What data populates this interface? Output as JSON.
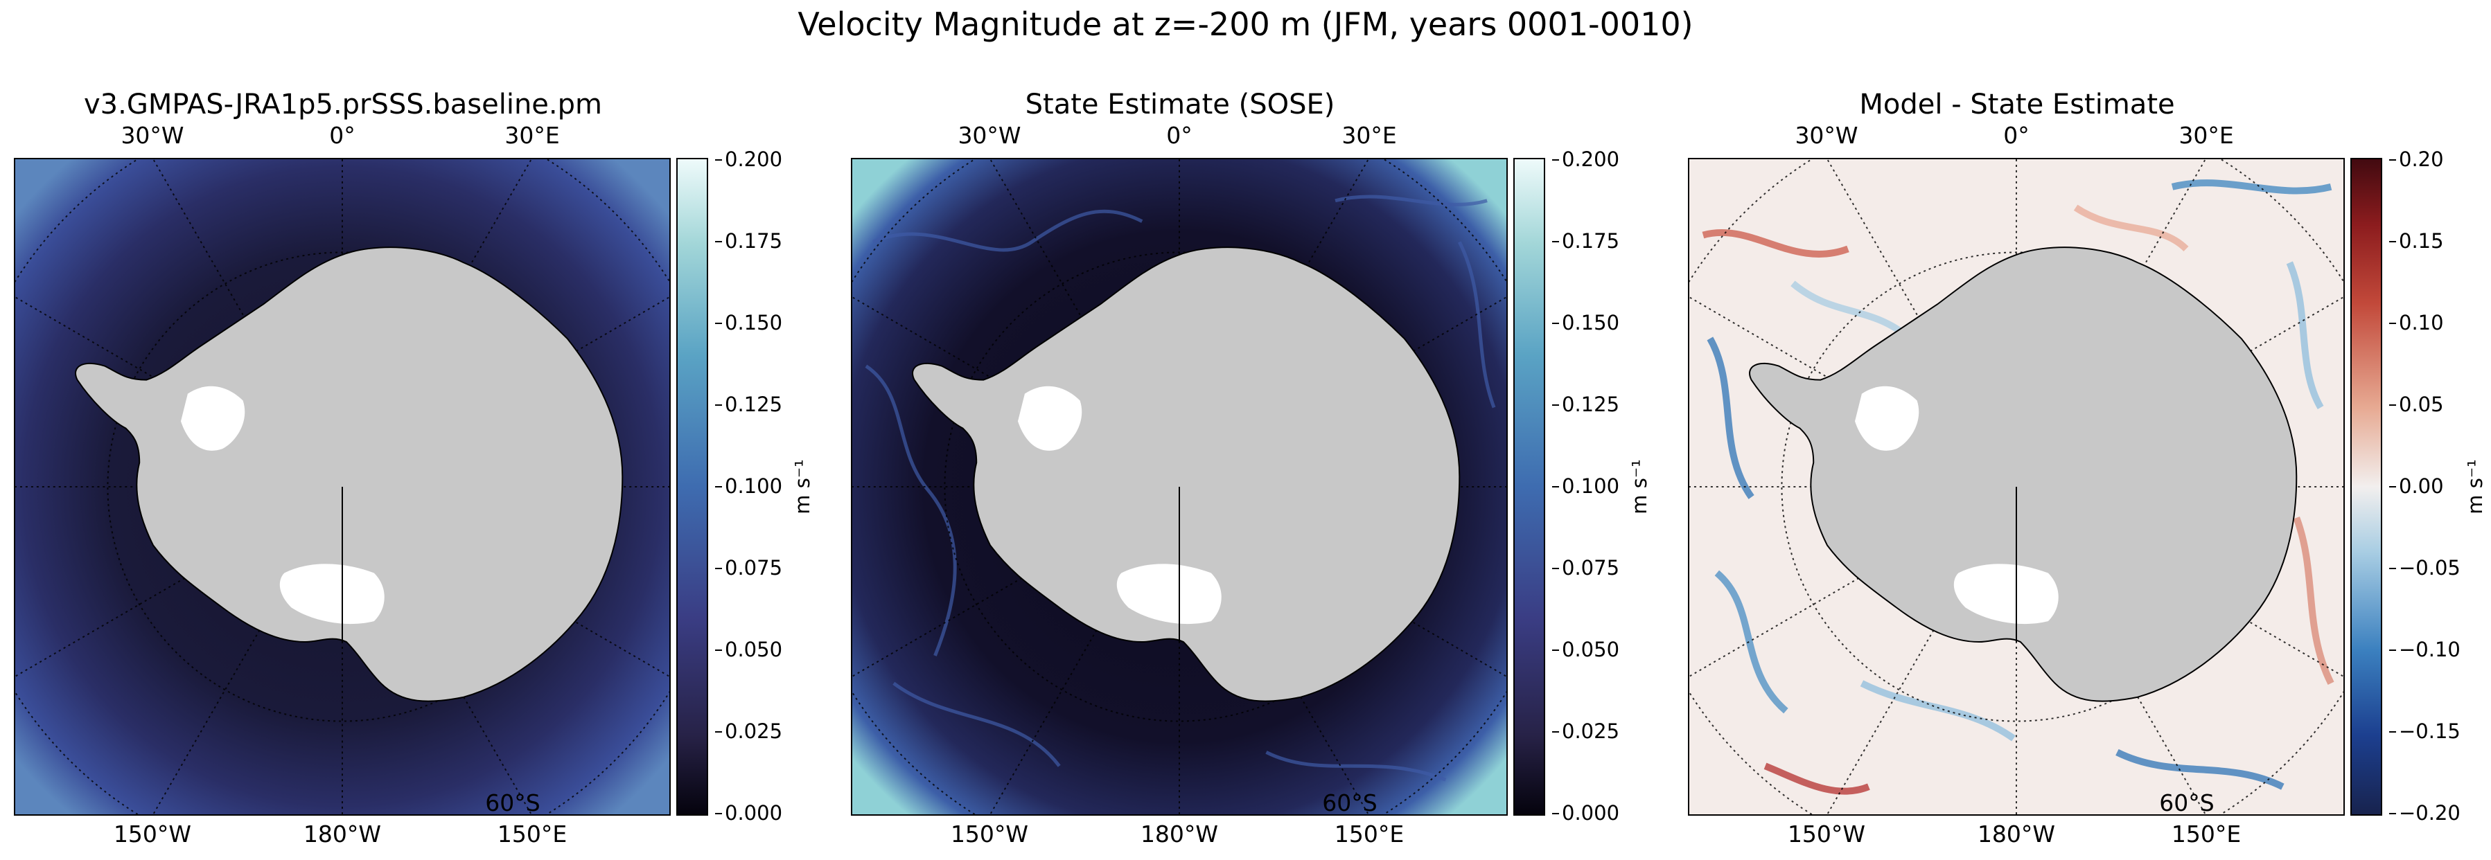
{
  "figure": {
    "title": "Velocity Magnitude at z=-200 m (JFM, years 0001-0010)"
  },
  "panels": [
    {
      "title": "v3.GMPAS-JRA1p5.prSSS.baseline.pm",
      "lon_labels_top": [
        "30°W",
        "0°",
        "30°E"
      ],
      "lon_labels_bottom": [
        "150°W",
        "180°W",
        "150°E"
      ],
      "lat_label": "60°S",
      "colormap": "ice",
      "colorbar": {
        "ticks": [
          "0.200",
          "0.175",
          "0.150",
          "0.125",
          "0.100",
          "0.075",
          "0.050",
          "0.025",
          "0.000"
        ],
        "range": [
          0.0,
          0.2
        ],
        "units": "m s⁻¹"
      }
    },
    {
      "title": "State Estimate (SOSE)",
      "lon_labels_top": [
        "30°W",
        "0°",
        "30°E"
      ],
      "lon_labels_bottom": [
        "150°W",
        "180°W",
        "150°E"
      ],
      "lat_label": "60°S",
      "colormap": "ice",
      "colorbar": {
        "ticks": [
          "0.200",
          "0.175",
          "0.150",
          "0.125",
          "0.100",
          "0.075",
          "0.050",
          "0.025",
          "0.000"
        ],
        "range": [
          0.0,
          0.2
        ],
        "units": "m s⁻¹"
      }
    },
    {
      "title": "Model - State Estimate",
      "lon_labels_top": [
        "30°W",
        "0°",
        "30°E"
      ],
      "lon_labels_bottom": [
        "150°W",
        "180°W",
        "150°E"
      ],
      "lat_label": "60°S",
      "colormap": "balance",
      "colorbar": {
        "ticks": [
          "0.20",
          "0.15",
          "0.10",
          "0.05",
          "0.00",
          "−0.05",
          "−0.10",
          "−0.15",
          "−0.20"
        ],
        "range": [
          -0.2,
          0.2
        ],
        "units": "m s⁻¹"
      }
    }
  ],
  "colors": {
    "land": "#c8c8c8",
    "ice_shelf": "#ffffff",
    "ice_dark": "#0c0a1a",
    "ice_mid": "#3f4b9c",
    "ice_light": "#e8f7f7",
    "bal_neg": "#1a2a6c",
    "bal_zero": "#f4f1ef",
    "bal_pos": "#650b0f"
  }
}
